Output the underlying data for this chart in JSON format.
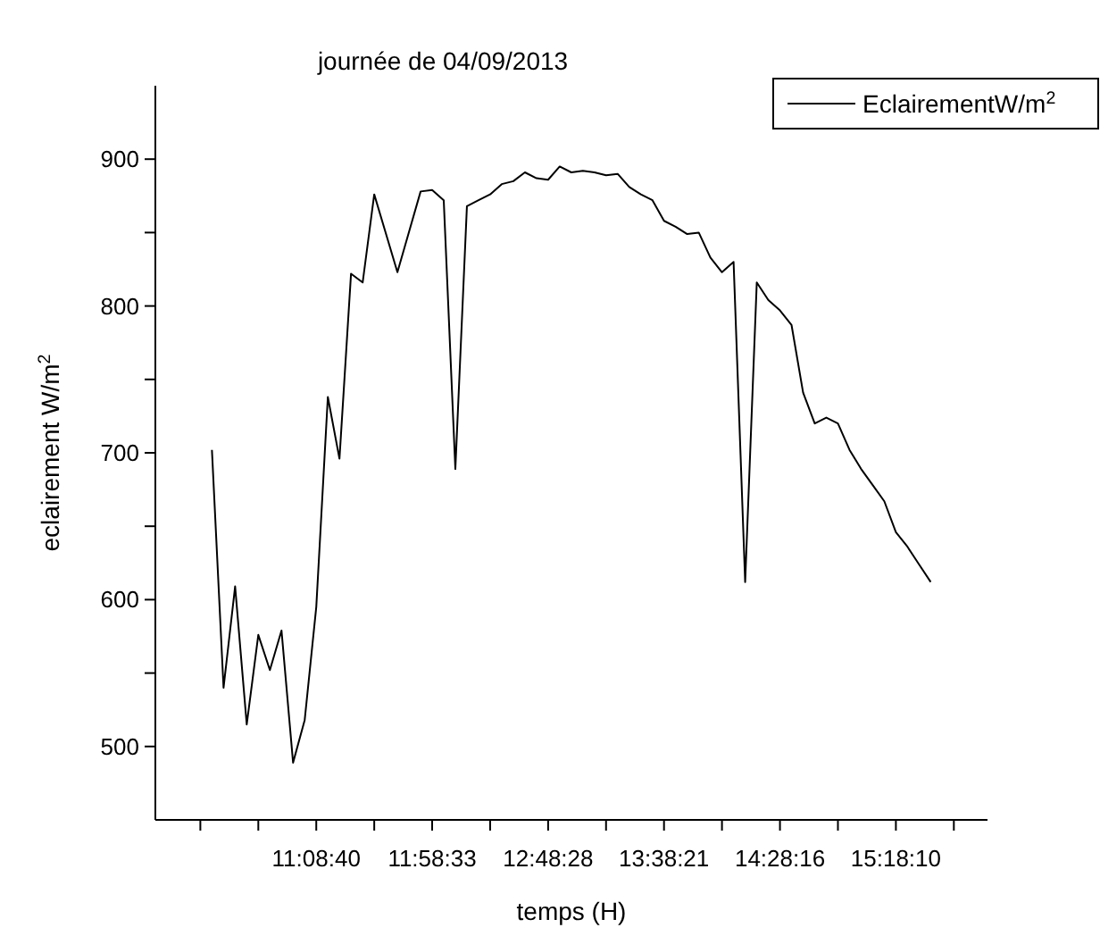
{
  "chart_data": {
    "type": "line",
    "title": "journée de 04/09/2013",
    "xlabel": "temps (H)",
    "ylabel": "eclairement W/m$^{2}$",
    "xlim": [
      "2013-09-04T09:59:24",
      "2013-09-04T15:57:36"
    ],
    "ylim": [
      450,
      950
    ],
    "xticks": [
      {
        "value": "2013-09-04T10:18:46",
        "label": null
      },
      {
        "value": "2013-09-04T10:43:43",
        "label": null
      },
      {
        "value": "2013-09-04T11:08:40",
        "label": "11:08:40"
      },
      {
        "value": "2013-09-04T11:33:37",
        "label": null
      },
      {
        "value": "2013-09-04T11:58:33",
        "label": "11:58:33"
      },
      {
        "value": "2013-09-04T12:23:30",
        "label": null
      },
      {
        "value": "2013-09-04T12:48:28",
        "label": "12:48:28"
      },
      {
        "value": "2013-09-04T13:13:24",
        "label": null
      },
      {
        "value": "2013-09-04T13:38:21",
        "label": "13:38:21"
      },
      {
        "value": "2013-09-04T14:03:18",
        "label": null
      },
      {
        "value": "2013-09-04T14:28:16",
        "label": "14:28:16"
      },
      {
        "value": "2013-09-04T14:53:13",
        "label": null
      },
      {
        "value": "2013-09-04T15:18:10",
        "label": "15:18:10"
      },
      {
        "value": "2013-09-04T15:43:07",
        "label": null
      }
    ],
    "yticks": [
      500,
      {
        "value": 550,
        "label": null
      },
      600,
      {
        "value": 650,
        "label": null
      },
      700,
      {
        "value": 750,
        "label": null
      },
      800,
      {
        "value": 850,
        "label": null
      },
      900
    ],
    "legend": "top right",
    "grid": false,
    "series": [
      {
        "name": "EclairementW/m$^{2}$",
        "color": "#000000",
        "x": [
          "2013-09-04T10:23:45",
          "2013-09-04T10:28:45",
          "2013-09-04T10:33:44",
          "2013-09-04T10:38:44",
          "2013-09-04T10:43:43",
          "2013-09-04T10:48:42",
          "2013-09-04T10:53:42",
          "2013-09-04T10:58:41",
          "2013-09-04T11:03:41",
          "2013-09-04T11:08:40",
          "2013-09-04T11:13:39",
          "2013-09-04T11:18:39",
          "2013-09-04T11:23:38",
          "2013-09-04T11:28:38",
          "2013-09-04T11:33:37",
          "2013-09-04T11:43:36",
          "2013-09-04T11:53:35",
          "2013-09-04T11:58:33",
          "2013-09-04T12:03:32",
          "2013-09-04T12:08:32",
          "2013-09-04T12:13:31",
          "2013-09-04T12:18:31",
          "2013-09-04T12:23:30",
          "2013-09-04T12:28:30",
          "2013-09-04T12:33:29",
          "2013-09-04T12:38:29",
          "2013-09-04T12:43:28",
          "2013-09-04T12:48:28",
          "2013-09-04T12:53:27",
          "2013-09-04T12:58:26",
          "2013-09-04T13:03:26",
          "2013-09-04T13:08:25",
          "2013-09-04T13:13:25",
          "2013-09-04T13:18:24",
          "2013-09-04T13:23:24",
          "2013-09-04T13:28:23",
          "2013-09-04T13:33:23",
          "2013-09-04T13:38:21",
          "2013-09-04T13:43:20",
          "2013-09-04T13:48:20",
          "2013-09-04T13:53:19",
          "2013-09-04T13:58:19",
          "2013-09-04T14:03:18",
          "2013-09-04T14:08:18",
          "2013-09-04T14:13:17",
          "2013-09-04T14:18:17",
          "2013-09-04T14:23:16",
          "2013-09-04T14:28:16",
          "2013-09-04T14:33:15",
          "2013-09-04T14:38:14",
          "2013-09-04T14:43:14",
          "2013-09-04T14:48:13",
          "2013-09-04T14:53:13",
          "2013-09-04T14:58:12",
          "2013-09-04T15:03:12",
          "2013-09-04T15:08:11",
          "2013-09-04T15:13:11",
          "2013-09-04T15:18:10",
          "2013-09-04T15:23:10",
          "2013-09-04T15:28:09",
          "2013-09-04T15:33:09"
        ],
        "values": [
          702,
          540,
          609,
          515,
          576,
          552,
          579,
          489,
          518,
          595,
          738,
          696,
          822,
          816,
          876,
          823,
          878,
          879,
          872,
          689,
          868,
          872,
          876,
          883,
          885,
          891,
          887,
          886,
          895,
          891,
          892,
          891,
          889,
          890,
          881,
          876,
          872,
          858,
          854,
          849,
          850,
          833,
          823,
          830,
          612,
          816,
          804,
          797,
          787,
          741,
          720,
          724,
          720,
          702,
          689,
          678,
          667,
          646,
          636,
          624,
          612
        ]
      }
    ]
  }
}
